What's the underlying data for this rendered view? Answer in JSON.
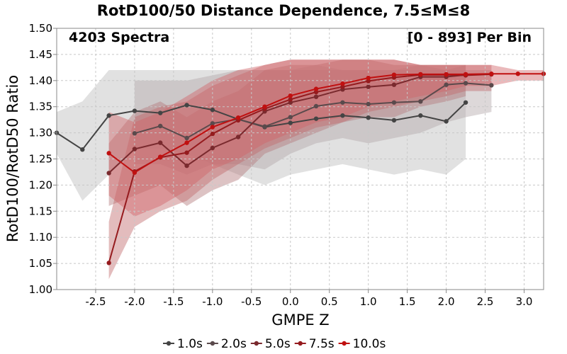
{
  "chart_data": {
    "type": "line",
    "title": "RotD100/50 Distance Dependence, 7.5≤M≤8",
    "annotation_left": "4203 Spectra",
    "annotation_right": "[0 - 893] Per Bin",
    "xlabel": "GMPE Z",
    "ylabel": "RotD100/RotD50 Ratio",
    "xlim": [
      -3.0,
      3.25
    ],
    "ylim": [
      1.0,
      1.5
    ],
    "xticks": [
      -2.5,
      -2.0,
      -1.5,
      -1.0,
      -0.5,
      0.0,
      0.5,
      1.0,
      1.5,
      2.0,
      2.5,
      3.0
    ],
    "xtick_labels": [
      "-2.5",
      "-2.0",
      "-1.5",
      "-1.0",
      "-0.5",
      "0.0",
      "0.5",
      "1.0",
      "1.5",
      "2.0",
      "2.5",
      "3.0"
    ],
    "yticks": [
      1.0,
      1.05,
      1.1,
      1.15,
      1.2,
      1.25,
      1.3,
      1.35,
      1.4,
      1.45,
      1.5
    ],
    "ytick_labels": [
      "1.00",
      "1.05",
      "1.10",
      "1.15",
      "1.20",
      "1.25",
      "1.30",
      "1.35",
      "1.40",
      "1.45",
      "1.50"
    ],
    "grid": true,
    "legend_position": "bottom",
    "series": [
      {
        "name": "1.0s",
        "color": "#444444",
        "x": [
          -3.0,
          -2.67,
          -2.33,
          -2.0,
          -1.67,
          -1.33,
          -1.0,
          -0.67,
          -0.33,
          0.0,
          0.33,
          0.67,
          1.0,
          1.33,
          1.67,
          2.0,
          2.25
        ],
        "y": [
          1.3,
          1.268,
          1.333,
          1.342,
          1.338,
          1.353,
          1.344,
          1.326,
          1.311,
          1.319,
          1.327,
          1.333,
          1.329,
          1.324,
          1.333,
          1.322,
          1.358
        ],
        "lower": [
          1.26,
          1.17,
          1.22,
          1.27,
          1.27,
          1.26,
          1.24,
          1.22,
          1.2,
          1.22,
          1.23,
          1.24,
          1.23,
          1.22,
          1.23,
          1.22,
          1.25
        ],
        "upper": [
          1.34,
          1.36,
          1.42,
          1.42,
          1.42,
          1.42,
          1.42,
          1.42,
          1.42,
          1.42,
          1.43,
          1.42,
          1.42,
          1.42,
          1.43,
          1.42,
          1.43
        ]
      },
      {
        "name": "2.0s",
        "color": "#5a4a4c",
        "x": [
          -2.0,
          -1.67,
          -1.33,
          -1.0,
          -0.67,
          -0.33,
          0.0,
          0.33,
          0.67,
          1.0,
          1.33,
          1.67,
          2.0,
          2.25,
          2.58
        ],
        "y": [
          1.299,
          1.313,
          1.29,
          1.318,
          1.326,
          1.312,
          1.33,
          1.351,
          1.358,
          1.355,
          1.358,
          1.36,
          1.392,
          1.395,
          1.391
        ],
        "lower": [
          1.24,
          1.24,
          1.22,
          1.24,
          1.24,
          1.23,
          1.26,
          1.28,
          1.29,
          1.28,
          1.29,
          1.3,
          1.32,
          1.33,
          1.34
        ],
        "upper": [
          1.4,
          1.4,
          1.4,
          1.41,
          1.42,
          1.42,
          1.42,
          1.42,
          1.42,
          1.42,
          1.42,
          1.42,
          1.42,
          1.42,
          1.42
        ]
      },
      {
        "name": "5.0s",
        "color": "#7a2a2e",
        "x": [
          -2.33,
          -2.0,
          -1.67,
          -1.33,
          -1.0,
          -0.67,
          -0.33,
          0.0,
          0.33,
          0.67,
          1.0,
          1.33,
          1.67,
          2.0,
          2.25
        ],
        "y": [
          1.223,
          1.269,
          1.281,
          1.237,
          1.271,
          1.292,
          1.341,
          1.358,
          1.369,
          1.383,
          1.388,
          1.392,
          1.407,
          1.407,
          1.411
        ],
        "lower": [
          1.16,
          1.18,
          1.2,
          1.16,
          1.19,
          1.21,
          1.26,
          1.28,
          1.3,
          1.32,
          1.33,
          1.33,
          1.35,
          1.36,
          1.37
        ],
        "upper": [
          1.28,
          1.34,
          1.36,
          1.33,
          1.36,
          1.38,
          1.42,
          1.43,
          1.43,
          1.44,
          1.44,
          1.43,
          1.43,
          1.43,
          1.43
        ]
      },
      {
        "name": "7.5s",
        "color": "#951b1e",
        "x": [
          -2.33,
          -2.0,
          -1.67,
          -1.33,
          -1.0,
          -0.67,
          -0.33,
          0.0,
          0.33,
          0.67,
          1.0,
          1.33,
          1.67,
          2.0,
          2.25,
          2.58
        ],
        "y": [
          1.051,
          1.226,
          1.253,
          1.262,
          1.298,
          1.324,
          1.346,
          1.364,
          1.378,
          1.388,
          1.399,
          1.406,
          1.411,
          1.411,
          1.41,
          1.412
        ],
        "lower": [
          1.02,
          1.12,
          1.15,
          1.17,
          1.21,
          1.24,
          1.27,
          1.29,
          1.31,
          1.32,
          1.34,
          1.35,
          1.36,
          1.37,
          1.38,
          1.38
        ],
        "upper": [
          1.13,
          1.33,
          1.35,
          1.36,
          1.39,
          1.41,
          1.43,
          1.44,
          1.44,
          1.44,
          1.44,
          1.44,
          1.43,
          1.43,
          1.43,
          1.43
        ]
      },
      {
        "name": "10.0s",
        "color": "#c01010",
        "x": [
          -2.33,
          -2.0,
          -1.67,
          -1.33,
          -1.0,
          -0.67,
          -0.33,
          0.0,
          0.33,
          0.67,
          1.0,
          1.33,
          1.67,
          2.0,
          2.25,
          2.58,
          2.92,
          3.25
        ],
        "y": [
          1.261,
          1.224,
          1.254,
          1.281,
          1.311,
          1.329,
          1.35,
          1.371,
          1.384,
          1.394,
          1.405,
          1.411,
          1.412,
          1.412,
          1.412,
          1.413,
          1.413,
          1.413
        ],
        "lower": [
          1.18,
          1.14,
          1.16,
          1.19,
          1.23,
          1.25,
          1.28,
          1.3,
          1.32,
          1.33,
          1.35,
          1.36,
          1.37,
          1.38,
          1.39,
          1.39,
          1.4,
          1.4
        ],
        "upper": [
          1.34,
          1.32,
          1.34,
          1.37,
          1.4,
          1.42,
          1.43,
          1.44,
          1.44,
          1.44,
          1.44,
          1.44,
          1.43,
          1.43,
          1.43,
          1.43,
          1.42,
          1.42
        ]
      }
    ]
  },
  "style": {
    "band_colors": [
      "#bdbdbd",
      "#b3a9aa",
      "#b37a7c",
      "#c06a6c",
      "#d06468"
    ],
    "band_opacity": 0.45,
    "grid_color": "#c8c8c8",
    "axis_color": "#888888"
  }
}
